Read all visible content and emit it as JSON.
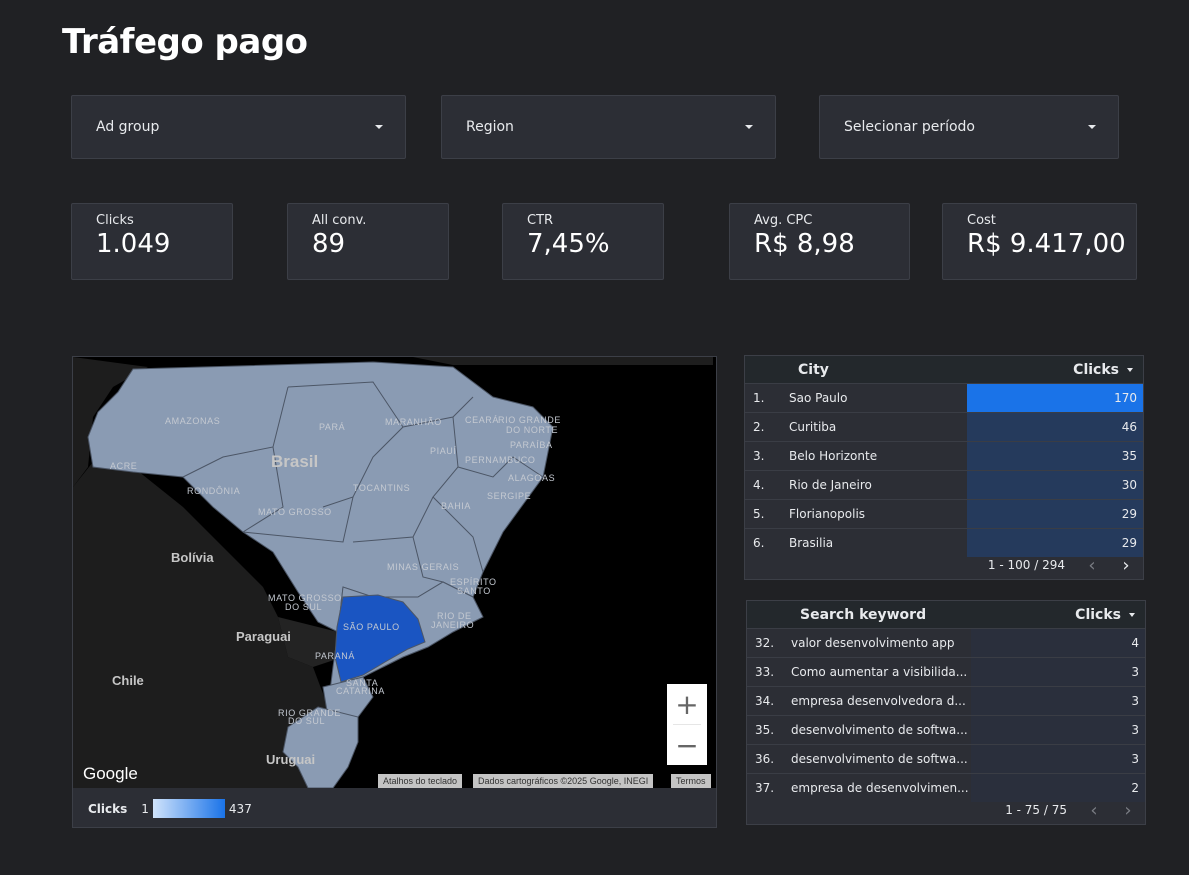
{
  "page": {
    "title": "Tráfego pago"
  },
  "filters": [
    {
      "label": "Ad group"
    },
    {
      "label": "Region"
    },
    {
      "label": "Selecionar período"
    }
  ],
  "kpis": [
    {
      "label": "Clicks",
      "value": "1.049"
    },
    {
      "label": "All conv.",
      "value": "89"
    },
    {
      "label": "CTR",
      "value": "7,45%"
    },
    {
      "label": "Avg. CPC",
      "value": "R$ 8,98"
    },
    {
      "label": "Cost",
      "value": "R$ 9.417,00"
    }
  ],
  "map": {
    "country_label": "Brasil",
    "state_labels": [
      "AMAZONAS",
      "PARÁ",
      "MARANHÃO",
      "CEARÁ",
      "RIO GRANDE",
      "DO NORTE",
      "PARAÍBA",
      "PIAUÍ",
      "PERNAMBUCO",
      "ALAGOAS",
      "SERGIPE",
      "ACRE",
      "RONDÔNIA",
      "TOCANTINS",
      "BAHIA",
      "MATO GROSSO",
      "MINAS GERAIS",
      "ESPÍRITO",
      "SANTO",
      "MATO GROSSO",
      "DO SUL",
      "SÃO PAULO",
      "RIO DE",
      "JANEIRO",
      "PARANÁ",
      "SANTA",
      "CATARINA",
      "RIO GRANDE",
      "DO SUL"
    ],
    "country_labels": [
      "Bolívia",
      "Paraguai",
      "Chile",
      "Uruguai"
    ],
    "fill_colors": {
      "low": "#8a9bb3",
      "high": "#1a55c2",
      "none": "#1c1c1c"
    },
    "google_logo": "Google",
    "attributions": [
      "Atalhos do teclado",
      "Dados cartográficos ©2025 Google, INEGI",
      "Termos"
    ],
    "zoom_in": "+",
    "zoom_out": "−",
    "legend": {
      "metric": "Clicks",
      "min": "1",
      "max": "437"
    }
  },
  "city_table": {
    "col_name": "City",
    "col_metric": "Clicks",
    "max": 170,
    "rows": [
      {
        "idx": "1.",
        "name": "Sao Paulo",
        "value": 170
      },
      {
        "idx": "2.",
        "name": "Curitiba",
        "value": 46
      },
      {
        "idx": "3.",
        "name": "Belo Horizonte",
        "value": 35
      },
      {
        "idx": "4.",
        "name": "Rio de Janeiro",
        "value": 30
      },
      {
        "idx": "5.",
        "name": "Florianopolis",
        "value": 29
      },
      {
        "idx": "6.",
        "name": "Brasilia",
        "value": 29
      }
    ],
    "pager": "1 - 100 / 294"
  },
  "keyword_table": {
    "col_name": "Search keyword",
    "col_metric": "Clicks",
    "rows": [
      {
        "idx": "32.",
        "name": "valor desenvolvimento app",
        "value": 4
      },
      {
        "idx": "33.",
        "name": "Como aumentar a visibilida...",
        "value": 3
      },
      {
        "idx": "34.",
        "name": "empresa desenvolvedora d...",
        "value": 3
      },
      {
        "idx": "35.",
        "name": "desenvolvimento de softwa...",
        "value": 3
      },
      {
        "idx": "36.",
        "name": "desenvolvimento de softwa...",
        "value": 3
      },
      {
        "idx": "37.",
        "name": "empresa de desenvolvimen...",
        "value": 2
      }
    ],
    "pager": "1 - 75 / 75"
  },
  "colors": {
    "accent": "#1a73e8",
    "bar_dim": "#253a5c",
    "background": "#202124"
  }
}
